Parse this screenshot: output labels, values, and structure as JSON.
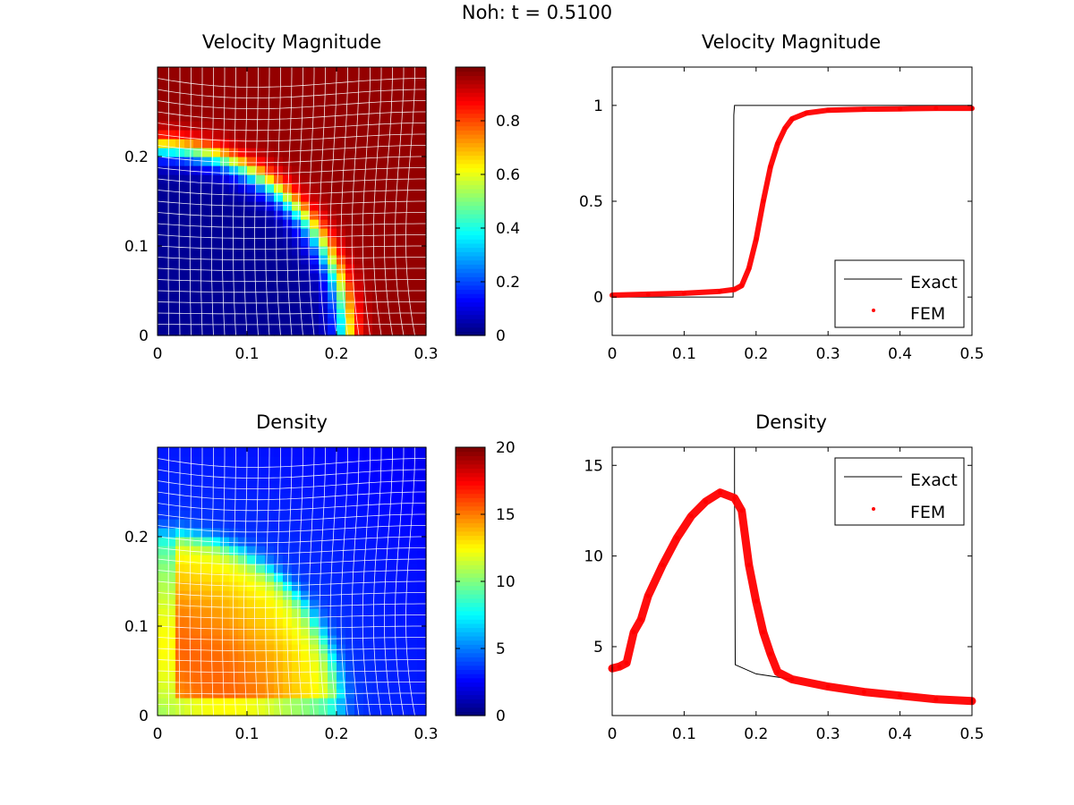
{
  "figure_title": "Noh: t = 0.5100",
  "chart_data": [
    {
      "type": "heatmap",
      "title": "Velocity Magnitude",
      "quantity": "velocity_magnitude",
      "xlim": [
        0,
        0.3
      ],
      "ylim": [
        0,
        0.3
      ],
      "xticks": [
        "0",
        "0.1",
        "0.2",
        "0.3"
      ],
      "yticks": [
        "0",
        "0.1",
        "0.2"
      ],
      "colorbar": {
        "range": [
          0,
          1
        ],
        "ticks": [
          "0",
          "0.2",
          "0.4",
          "0.6",
          "0.8"
        ],
        "colormap": "jet"
      },
      "features": {
        "shock_radius": 0.21,
        "inner_value": 0.02,
        "outer_value": 0.98,
        "mesh_lines": "white"
      }
    },
    {
      "type": "line",
      "title": "Velocity Magnitude",
      "xlim": [
        0,
        0.5
      ],
      "ylim": [
        -0.2,
        1.2
      ],
      "xticks": [
        "0",
        "0.1",
        "0.2",
        "0.3",
        "0.4",
        "0.5"
      ],
      "yticks": [
        "0",
        "0.5",
        "1"
      ],
      "legend": {
        "position": "bottom-right",
        "entries": [
          "Exact",
          "FEM"
        ]
      },
      "series": [
        {
          "name": "Exact",
          "color": "#000000",
          "x": [
            0,
            0.168,
            0.169,
            0.17,
            0.5
          ],
          "y": [
            0,
            0,
            0.95,
            1,
            1
          ]
        },
        {
          "name": "FEM",
          "color": "#ff0000",
          "marker": "dot",
          "x": [
            0,
            0.05,
            0.1,
            0.15,
            0.17,
            0.18,
            0.19,
            0.2,
            0.21,
            0.22,
            0.23,
            0.24,
            0.25,
            0.27,
            0.3,
            0.35,
            0.4,
            0.45,
            0.5
          ],
          "y": [
            0.01,
            0.015,
            0.02,
            0.03,
            0.04,
            0.06,
            0.15,
            0.3,
            0.5,
            0.68,
            0.8,
            0.88,
            0.93,
            0.96,
            0.975,
            0.98,
            0.982,
            0.985,
            0.985
          ]
        }
      ]
    },
    {
      "type": "heatmap",
      "title": "Density",
      "quantity": "density",
      "xlim": [
        0,
        0.3
      ],
      "ylim": [
        0,
        0.3
      ],
      "xticks": [
        "0",
        "0.1",
        "0.2",
        "0.3"
      ],
      "yticks": [
        "0",
        "0.1",
        "0.2"
      ],
      "colorbar": {
        "range": [
          0,
          20
        ],
        "ticks": [
          "0",
          "5",
          "10",
          "15",
          "20"
        ],
        "colormap": "jet"
      },
      "features": {
        "shock_radius": 0.205,
        "inner_value": 13.5,
        "outer_value": 3.5,
        "mesh_lines": "white"
      }
    },
    {
      "type": "line",
      "title": "Density",
      "xlim": [
        0,
        0.5
      ],
      "ylim": [
        1.2,
        16
      ],
      "xticks": [
        "0",
        "0.1",
        "0.2",
        "0.3",
        "0.4",
        "0.5"
      ],
      "yticks": [
        "5",
        "10",
        "15"
      ],
      "legend": {
        "position": "top-right",
        "entries": [
          "Exact",
          "FEM"
        ]
      },
      "series": [
        {
          "name": "Exact",
          "color": "#000000",
          "x": [
            0.17,
            0.17,
            0.171,
            0.2,
            0.25
          ],
          "y": [
            16,
            14,
            4,
            3.5,
            3.2
          ]
        },
        {
          "name": "FEM",
          "color": "#ff0000",
          "marker": "dot",
          "x": [
            0,
            0.01,
            0.02,
            0.03,
            0.04,
            0.05,
            0.07,
            0.09,
            0.11,
            0.13,
            0.15,
            0.17,
            0.18,
            0.19,
            0.2,
            0.21,
            0.22,
            0.23,
            0.25,
            0.3,
            0.35,
            0.4,
            0.45,
            0.5
          ],
          "y": [
            3.8,
            3.9,
            4.1,
            5.8,
            6.5,
            7.8,
            9.5,
            11.0,
            12.2,
            13.0,
            13.5,
            13.2,
            12.5,
            9.5,
            7.5,
            5.8,
            4.6,
            3.6,
            3.2,
            2.8,
            2.5,
            2.3,
            2.1,
            2.0
          ]
        }
      ]
    }
  ]
}
